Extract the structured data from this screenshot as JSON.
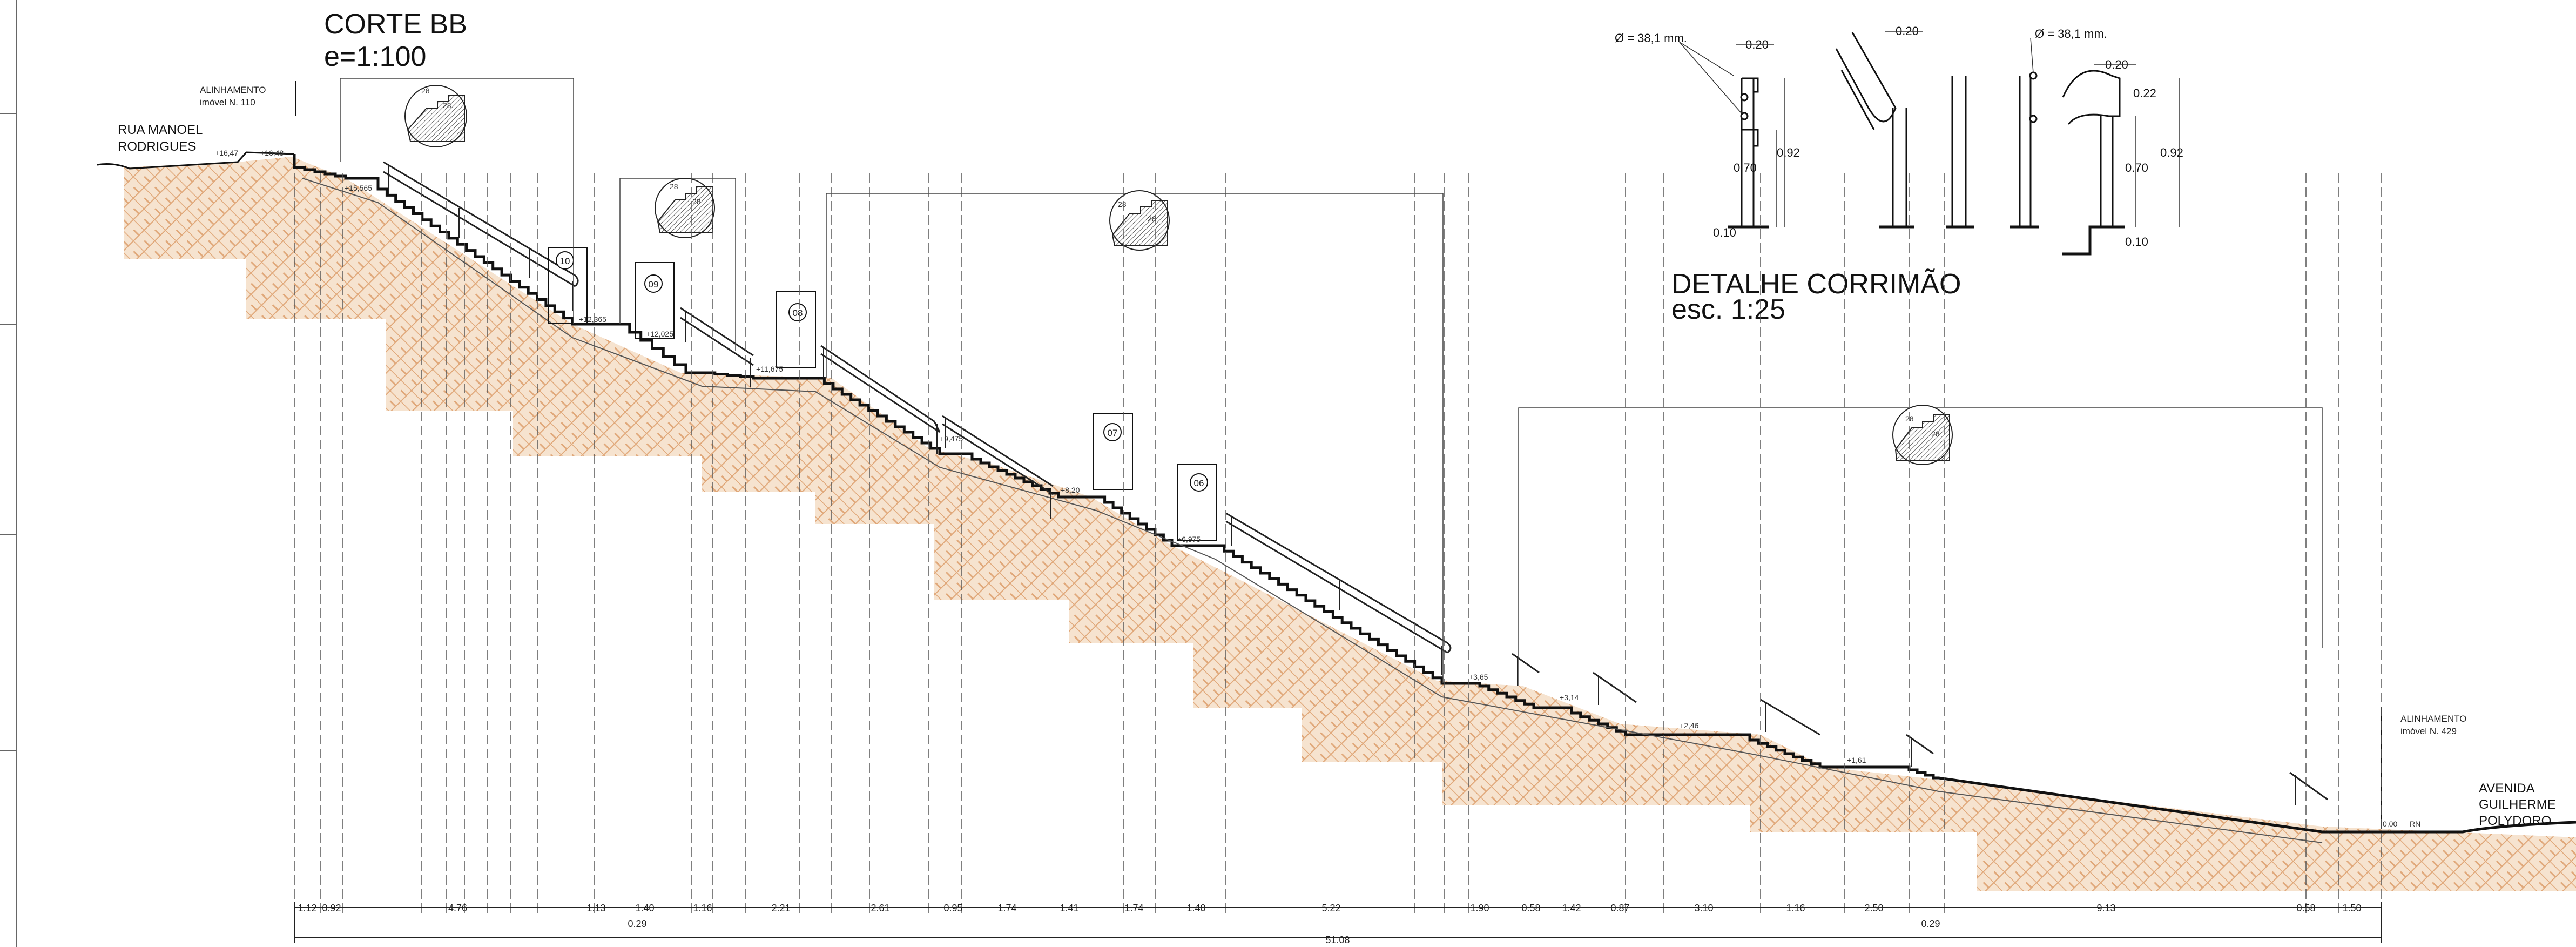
{
  "section": {
    "title": "CORTE BB",
    "scale": "e=1:100"
  },
  "detail": {
    "title": "DETALHE CORRIMÃO",
    "scale": "esc. 1:25"
  },
  "streets": {
    "left_line1": "RUA MANOEL",
    "left_line2": "RODRIGUES",
    "right_line1": "AVENIDA",
    "right_line2": "GUILHERME",
    "right_line3": "POLYDORO"
  },
  "alignments": {
    "left_line1": "ALINHAMENTO",
    "left_line2": "imóvel N. 110",
    "right_line1": "ALINHAMENTO",
    "right_line2": "imóvel N. 429"
  },
  "levels": [
    "+16,47",
    "+16,48",
    "+15,565",
    "+12,365",
    "+12,025",
    "+11,675",
    "+9,475",
    "+8,20",
    "+6,975",
    "+3,65",
    "+3,14",
    "+2,46",
    "+1,61",
    "0,00"
  ],
  "level_rn": "RN",
  "landings": [
    "10",
    "09",
    "08",
    "07",
    "06"
  ],
  "bottom_dims": [
    "1.12",
    "0.92",
    "4.76",
    "1.13",
    "1.40",
    "1.16",
    "2.21",
    "2.61",
    "0.95",
    "1.74",
    "1.41",
    "1.74",
    "1.40",
    "5.22",
    "1.90",
    "0.58",
    "1.42",
    "0.87",
    "3.10",
    "1.16",
    "2.50",
    "9.13",
    "0.58",
    "1.50"
  ],
  "sub_dims": [
    "0.29",
    "0.29"
  ],
  "total_dim": "51.08",
  "rail_dims": {
    "diameter_a": "Ø = 38,1 mm.",
    "diameter_b": "Ø = 38,1 mm.",
    "w1": "0.20",
    "w2": "0.20",
    "w3": "0.20",
    "h1": "0.92",
    "h2": "0.70",
    "h3": "0.92",
    "h4": "0.70",
    "g1": "0.22",
    "b1": "0.10",
    "b2": "0.10"
  },
  "step_detail": {
    "riser": "28",
    "tread": "28"
  },
  "colors": {
    "earth": "#e8b98c",
    "line": "#111111"
  }
}
